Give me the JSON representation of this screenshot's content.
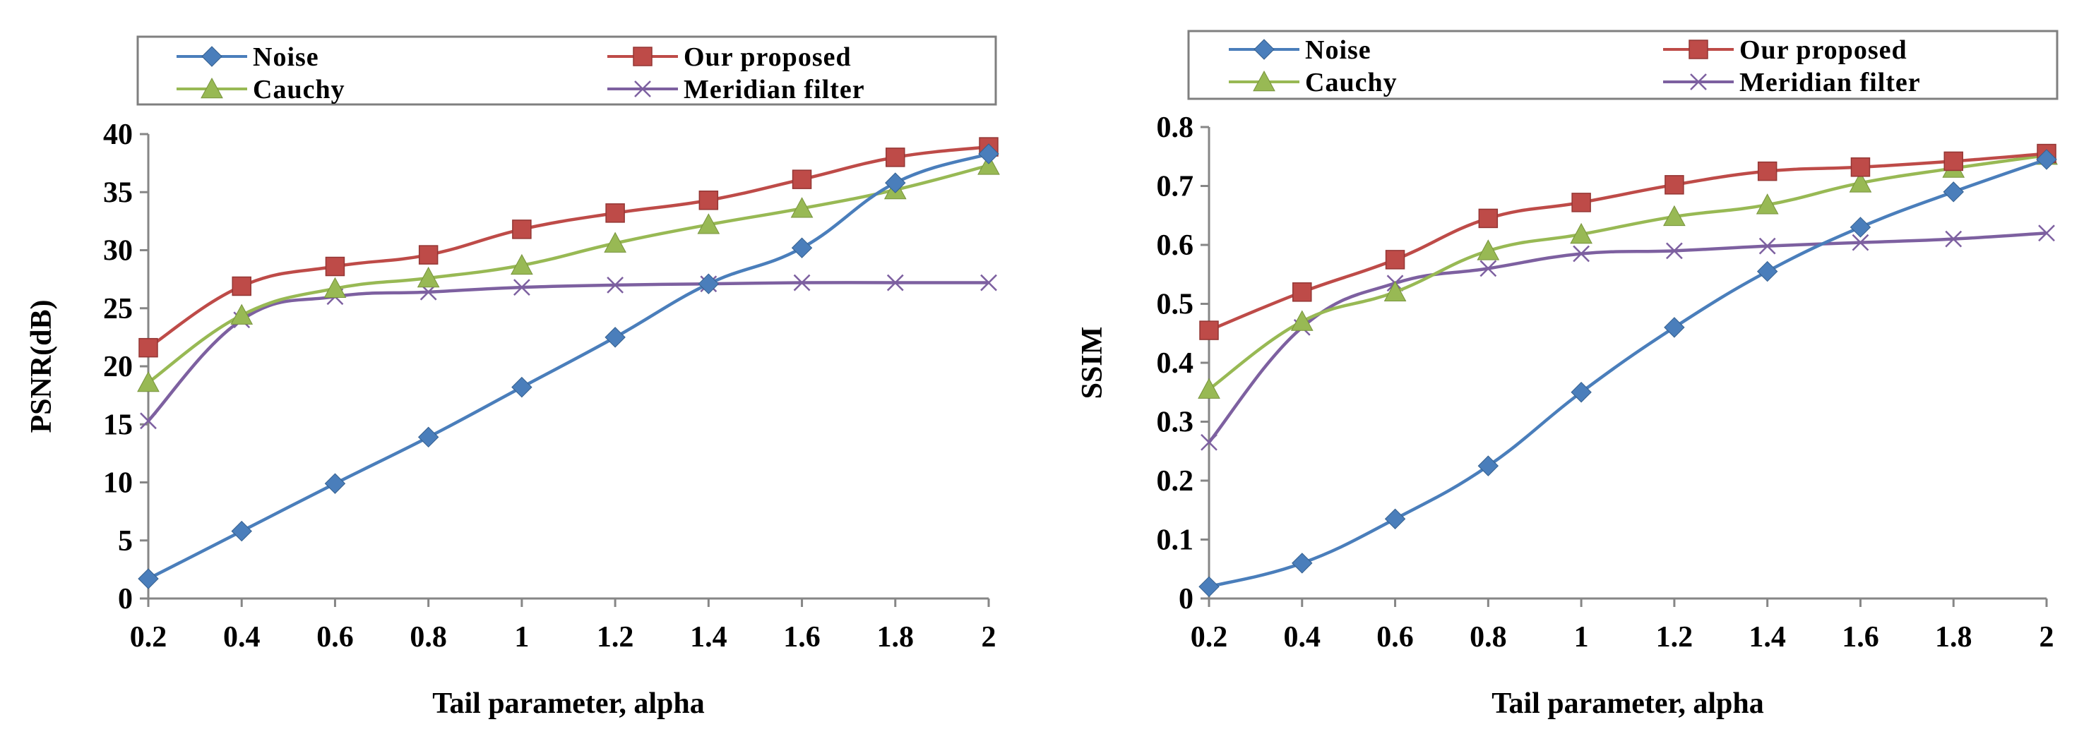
{
  "chart_data": [
    {
      "type": "line",
      "ylabel": "PSNR(dB)",
      "xlabel": "Tail parameter,  alpha",
      "x": [
        0.2,
        0.4,
        0.6,
        0.8,
        1,
        1.2,
        1.4,
        1.6,
        1.8,
        2
      ],
      "x_tick_labels": [
        "0.2",
        "0.4",
        "0.6",
        "0.8",
        "1",
        "1.2",
        "1.4",
        "1.6",
        "1.8",
        "2"
      ],
      "ylim": [
        0,
        40
      ],
      "y_ticks": [
        0,
        5,
        10,
        15,
        20,
        25,
        30,
        35,
        40
      ],
      "y_tick_labels": [
        "0",
        "5",
        "10",
        "15",
        "20",
        "25",
        "30",
        "35",
        "40"
      ],
      "grid": false,
      "legend_position": "top",
      "series": [
        {
          "name": "Noise",
          "color": "#4a7ebb",
          "marker": "diamond",
          "values": [
            1.7,
            5.8,
            9.9,
            13.9,
            18.2,
            22.5,
            27.1,
            30.2,
            35.8,
            38.3
          ]
        },
        {
          "name": "Our proposed",
          "color": "#be4b48",
          "marker": "square",
          "values": [
            21.6,
            26.9,
            28.6,
            29.6,
            31.8,
            33.2,
            34.3,
            36.1,
            38.0,
            38.9
          ]
        },
        {
          "name": "Cauchy",
          "color": "#98b954",
          "marker": "triangle",
          "values": [
            18.6,
            24.4,
            26.7,
            27.6,
            28.7,
            30.6,
            32.2,
            33.6,
            35.2,
            37.3
          ]
        },
        {
          "name": "Meridian filter",
          "color": "#7d60a0",
          "marker": "x",
          "values": [
            15.3,
            24.0,
            26.0,
            26.4,
            26.8,
            27.0,
            27.1,
            27.2,
            27.2,
            27.2
          ]
        }
      ]
    },
    {
      "type": "line",
      "ylabel": "SSIM",
      "xlabel": "Tail parameter,  alpha",
      "x": [
        0.2,
        0.4,
        0.6,
        0.8,
        1,
        1.2,
        1.4,
        1.6,
        1.8,
        2
      ],
      "x_tick_labels": [
        "0.2",
        "0.4",
        "0.6",
        "0.8",
        "1",
        "1.2",
        "1.4",
        "1.6",
        "1.8",
        "2"
      ],
      "ylim": [
        0,
        0.8
      ],
      "y_ticks": [
        0,
        0.1,
        0.2,
        0.3,
        0.4,
        0.5,
        0.6,
        0.7,
        0.8
      ],
      "y_tick_labels": [
        "0",
        "0.1",
        "0.2",
        "0.3",
        "0.4",
        "0.5",
        "0.6",
        "0.7",
        "0.8"
      ],
      "grid": false,
      "legend_position": "top",
      "series": [
        {
          "name": "Noise",
          "color": "#4a7ebb",
          "marker": "diamond",
          "values": [
            0.02,
            0.06,
            0.135,
            0.225,
            0.35,
            0.46,
            0.555,
            0.63,
            0.69,
            0.745
          ]
        },
        {
          "name": "Our proposed",
          "color": "#be4b48",
          "marker": "square",
          "values": [
            0.455,
            0.52,
            0.575,
            0.645,
            0.672,
            0.702,
            0.725,
            0.732,
            0.742,
            0.755
          ]
        },
        {
          "name": "Cauchy",
          "color": "#98b954",
          "marker": "triangle",
          "values": [
            0.355,
            0.47,
            0.52,
            0.59,
            0.618,
            0.648,
            0.668,
            0.705,
            0.73,
            0.752
          ]
        },
        {
          "name": "Meridian filter",
          "color": "#7d60a0",
          "marker": "x",
          "values": [
            0.265,
            0.46,
            0.535,
            0.56,
            0.585,
            0.59,
            0.598,
            0.604,
            0.61,
            0.62
          ]
        }
      ]
    }
  ]
}
